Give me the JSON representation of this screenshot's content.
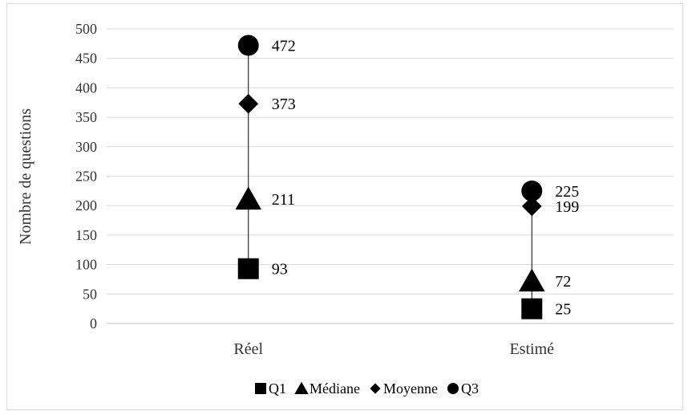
{
  "chart_data": {
    "type": "scatter",
    "title": "",
    "xlabel": "",
    "ylabel": "Nombre de questions",
    "ylim": [
      0,
      500
    ],
    "ytick_step": 50,
    "grid": true,
    "legend": "bottom",
    "categories": [
      "Réel",
      "Estimé"
    ],
    "series": [
      {
        "name": "Q1",
        "marker": "square",
        "values": [
          93,
          25
        ],
        "labels": [
          "93",
          "25"
        ]
      },
      {
        "name": "Médiane",
        "marker": "triangle",
        "values": [
          211,
          72
        ],
        "labels": [
          "211",
          "72"
        ]
      },
      {
        "name": "Moyenne",
        "marker": "diamond",
        "values": [
          373,
          199
        ],
        "labels": [
          "373",
          "199"
        ]
      },
      {
        "name": "Q3",
        "marker": "circle",
        "values": [
          472,
          225
        ],
        "labels": [
          "472",
          "225"
        ]
      }
    ],
    "colors": {
      "marker": "#000000",
      "grid": "#d9d9d9",
      "axis": "#bfbfbf"
    }
  }
}
